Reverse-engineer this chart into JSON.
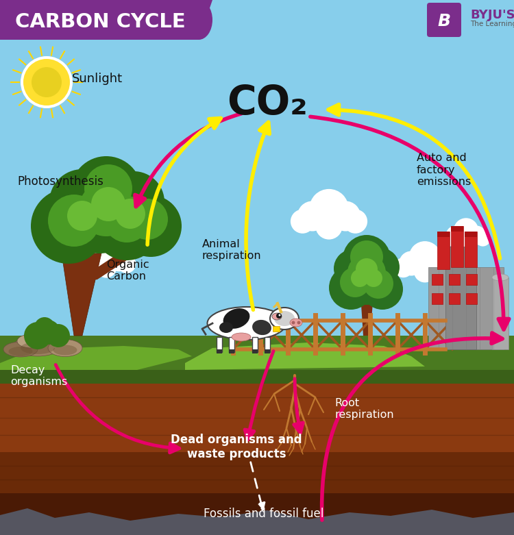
{
  "title": "CARBON CYCLE",
  "title_bg_color": "#7B2D8B",
  "title_text_color": "#FFFFFF",
  "co2_label": "CO₂",
  "labels": {
    "sunlight": "Sunlight",
    "photosynthesis": "Photosynthesis",
    "organic_carbon": "Organic\nCarbon",
    "animal_respiration": "Animal\nrespiration",
    "auto_factory": "Auto and\nfactory\nemissions",
    "decay_organisms": "Decay\norganisms",
    "root_respiration": "Root\nrespiration",
    "dead_organisms": "Dead organisms and\nwaste products",
    "fossils": "Fossils and fossil fuel"
  },
  "arrow_pink_color": "#E8006A",
  "arrow_yellow_color": "#FFEE00",
  "arrow_white_color": "#FFFFFF",
  "byju_bg": "#7B2D8B",
  "sky_color": "#87CEEB",
  "ground_green": "#5A8A28",
  "soil_color": "#7A3010",
  "deep_soil": "#5A2008",
  "rock_color": "#555555"
}
